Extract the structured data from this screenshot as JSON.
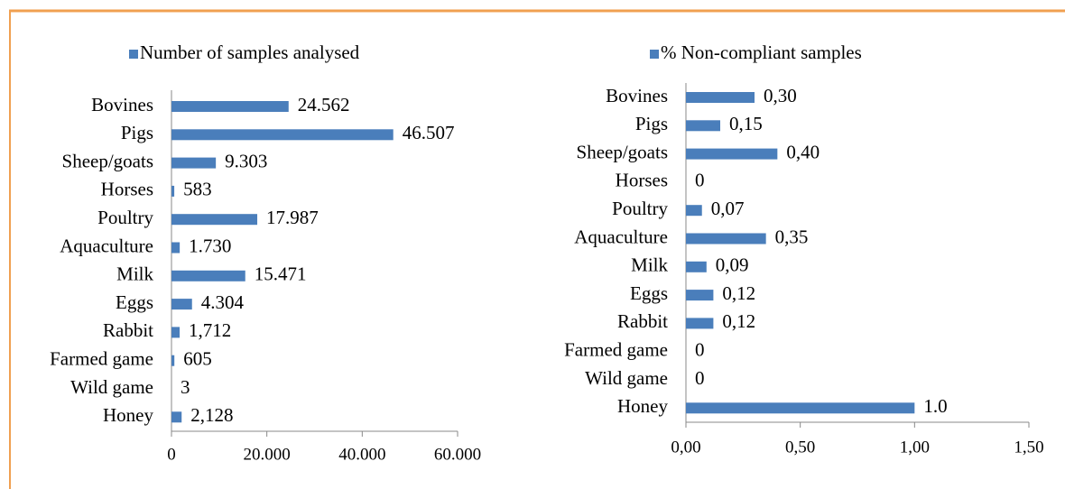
{
  "chart_data": [
    {
      "type": "hbar",
      "categories": [
        "Bovines",
        "Pigs",
        "Sheep/goats",
        "Horses",
        "Poultry",
        "Aquaculture",
        "Milk",
        "Eggs",
        "Rabbit",
        "Farmed game",
        "Wild game",
        "Honey"
      ],
      "series": [
        {
          "name": "Number of samples analysed",
          "color": "#4a7ebb",
          "values": [
            24562,
            46507,
            9303,
            583,
            17987,
            1730,
            15471,
            4304,
            1712,
            605,
            3,
            2128
          ],
          "value_labels": [
            "24.562",
            "46.507",
            "9.303",
            "583",
            "17.987",
            "1.730",
            "15.471",
            "4.304",
            "1,712",
            "605",
            "3",
            "2,128"
          ]
        }
      ],
      "xlim": [
        0,
        60000
      ],
      "xticks": [
        0,
        {
          "value": 20000,
          "label": "20.000"
        },
        {
          "value": 40000,
          "label": "40.000"
        },
        {
          "value": 60000,
          "label": "60.000"
        }
      ],
      "legend": "top"
    },
    {
      "type": "hbar",
      "categories": [
        "Bovines",
        "Pigs",
        "Sheep/goats",
        "Horses",
        "Poultry",
        "Aquaculture",
        "Milk",
        "Eggs",
        "Rabbit",
        "Farmed game",
        "Wild game",
        "Honey"
      ],
      "series": [
        {
          "name": "% Non-compliant samples",
          "color": "#4a7ebb",
          "values": [
            0.3,
            0.15,
            0.4,
            0,
            0.07,
            0.35,
            0.09,
            0.12,
            0.12,
            0,
            0,
            1.0
          ],
          "value_labels": [
            "0,30",
            "0,15",
            "0,40",
            "0",
            "0,07",
            "0,35",
            "0,09",
            "0,12",
            "0,12",
            "0",
            "0",
            "1.0"
          ]
        }
      ],
      "xlim": [
        0,
        1.5
      ],
      "xticks": [
        {
          "value": 0,
          "label": "0,00"
        },
        {
          "value": 0.5,
          "label": "0,50"
        },
        {
          "value": 1,
          "label": "1,00"
        },
        {
          "value": 1.5,
          "label": "1,50"
        }
      ],
      "legend": "top"
    }
  ]
}
